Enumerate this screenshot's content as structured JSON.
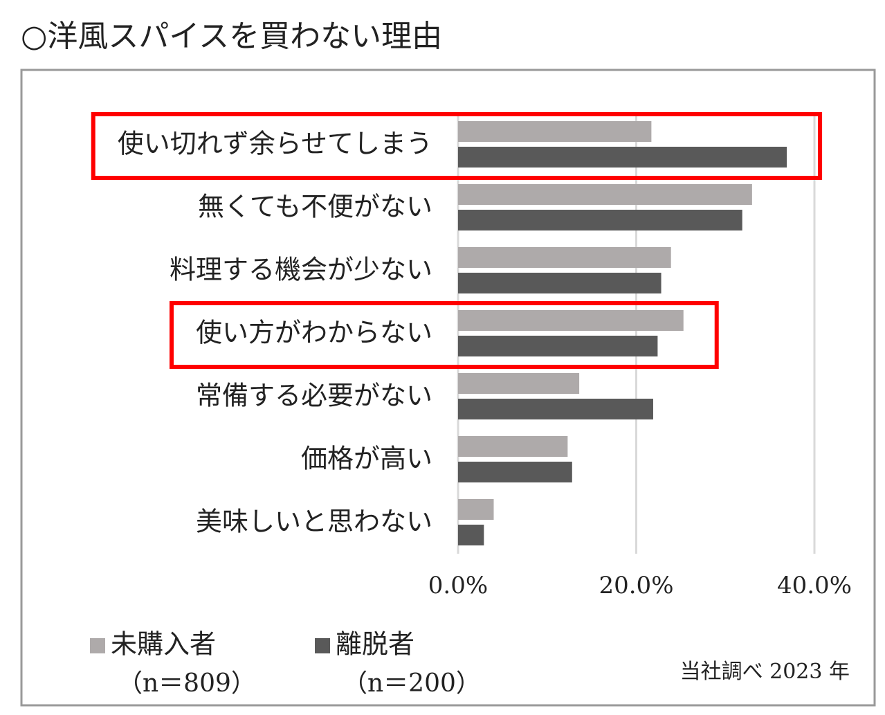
{
  "chart_data": {
    "type": "bar",
    "orientation": "horizontal",
    "title": "○洋風スパイスを買わない理由",
    "categories": [
      "使い切れず余らせてしまう",
      "無くても不便がない",
      "料理する機会が少ない",
      "使い方がわからない",
      "常備する必要がない",
      "価格が高い",
      "美味しいと思わない"
    ],
    "series": [
      {
        "name": "未購入者",
        "sample_size": "（n＝809）",
        "color": "#aeaaaa",
        "values": [
          21.7,
          33.0,
          23.9,
          25.3,
          13.6,
          12.3,
          4.0
        ]
      },
      {
        "name": "離脱者",
        "sample_size": "（n＝200）",
        "color": "#595959",
        "values": [
          36.9,
          31.9,
          22.8,
          22.4,
          21.9,
          12.8,
          2.9
        ]
      }
    ],
    "xlim": [
      0,
      40
    ],
    "xticks": [
      {
        "value": 0,
        "label": "0.0%"
      },
      {
        "value": 20,
        "label": "20.0%"
      },
      {
        "value": 40,
        "label": "40.0%"
      }
    ],
    "grid": true,
    "highlighted_categories": [
      0,
      3
    ],
    "highlight_color": "#ff0000",
    "source": "当社調べ 2023 年"
  }
}
